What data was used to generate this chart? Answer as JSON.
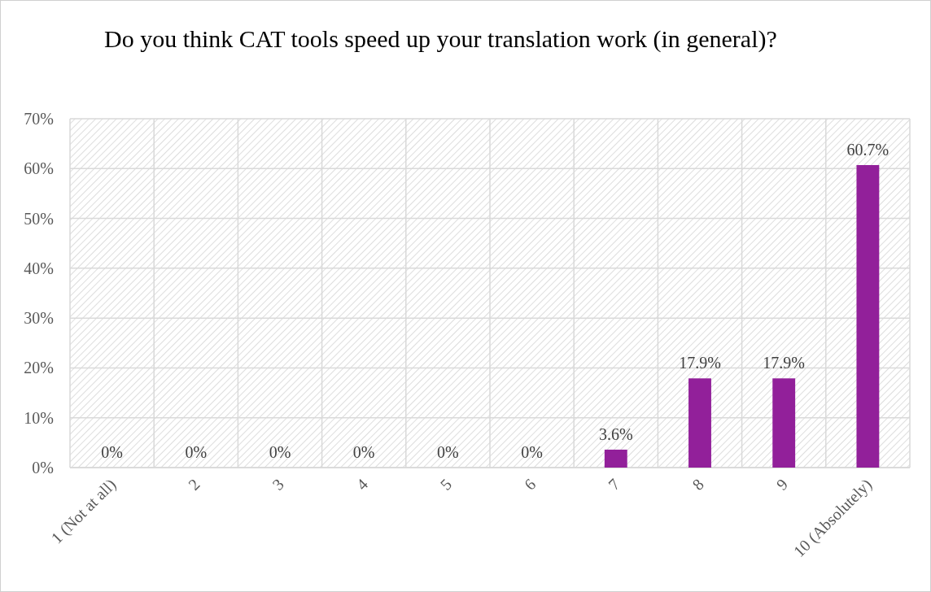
{
  "chart_data": {
    "type": "bar",
    "title": "Do you think CAT tools speed up your translation work (in general)?",
    "categories": [
      "1 (Not at all)",
      "2",
      "3",
      "4",
      "5",
      "6",
      "7",
      "8",
      "9",
      "10 (Absolutely)"
    ],
    "values": [
      0,
      0,
      0,
      0,
      0,
      0,
      3.6,
      17.9,
      17.9,
      60.7
    ],
    "value_labels": [
      "0%",
      "0%",
      "0%",
      "0%",
      "0%",
      "0%",
      "3.6%",
      "17.9%",
      "17.9%",
      "60.7%"
    ],
    "color": "#92209a",
    "ylim": [
      0,
      70
    ],
    "yticks": [
      {
        "value": 0,
        "label": "0%"
      },
      {
        "value": 10,
        "label": "10%"
      },
      {
        "value": 20,
        "label": "20%"
      },
      {
        "value": 30,
        "label": "30%"
      },
      {
        "value": 40,
        "label": "40%"
      },
      {
        "value": 50,
        "label": "50%"
      },
      {
        "value": 60,
        "label": "60%"
      },
      {
        "value": 70,
        "label": "70%"
      }
    ],
    "grid": true
  }
}
